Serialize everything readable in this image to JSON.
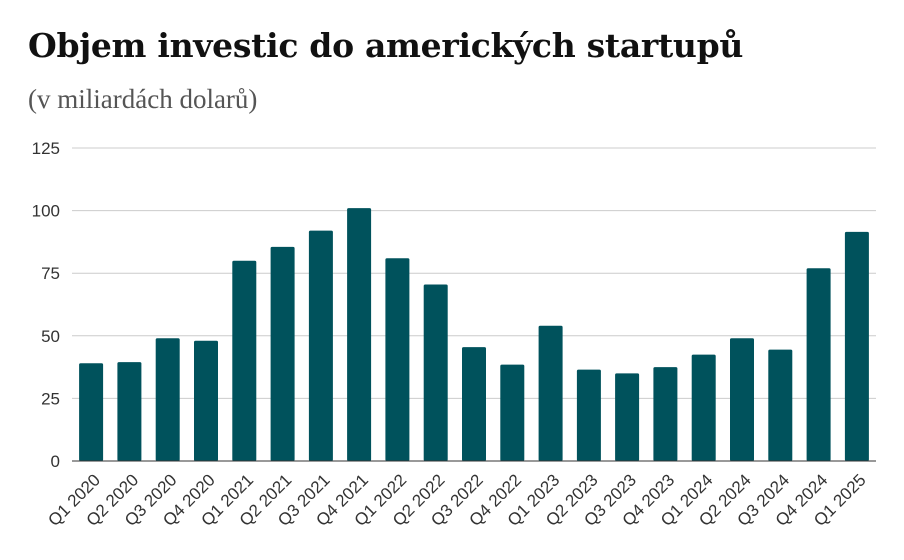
{
  "chart_data": {
    "type": "bar",
    "title": "Objem investic do amerických startupů",
    "subtitle": "(v miliardách dolarů)",
    "xlabel": "",
    "ylabel": "",
    "ylim": [
      0,
      125
    ],
    "yticks": [
      0,
      25,
      50,
      75,
      100,
      125
    ],
    "grid": true,
    "legend": "none",
    "bar_color": "#00525c",
    "categories": [
      "Q1 2020",
      "Q2 2020",
      "Q3 2020",
      "Q4 2020",
      "Q1 2021",
      "Q2 2021",
      "Q3 2021",
      "Q4 2021",
      "Q1 2022",
      "Q2 2022",
      "Q3 2022",
      "Q4 2022",
      "Q1 2023",
      "Q2 2023",
      "Q3 2023",
      "Q4 2023",
      "Q1 2024",
      "Q2 2024",
      "Q3 2024",
      "Q4 2024",
      "Q1 2025"
    ],
    "values": [
      39,
      39.5,
      49,
      48,
      80,
      85.5,
      92,
      101,
      81,
      70.5,
      45.5,
      38.5,
      54,
      36.5,
      35,
      37.5,
      42.5,
      49,
      44.5,
      77,
      91.5
    ]
  }
}
